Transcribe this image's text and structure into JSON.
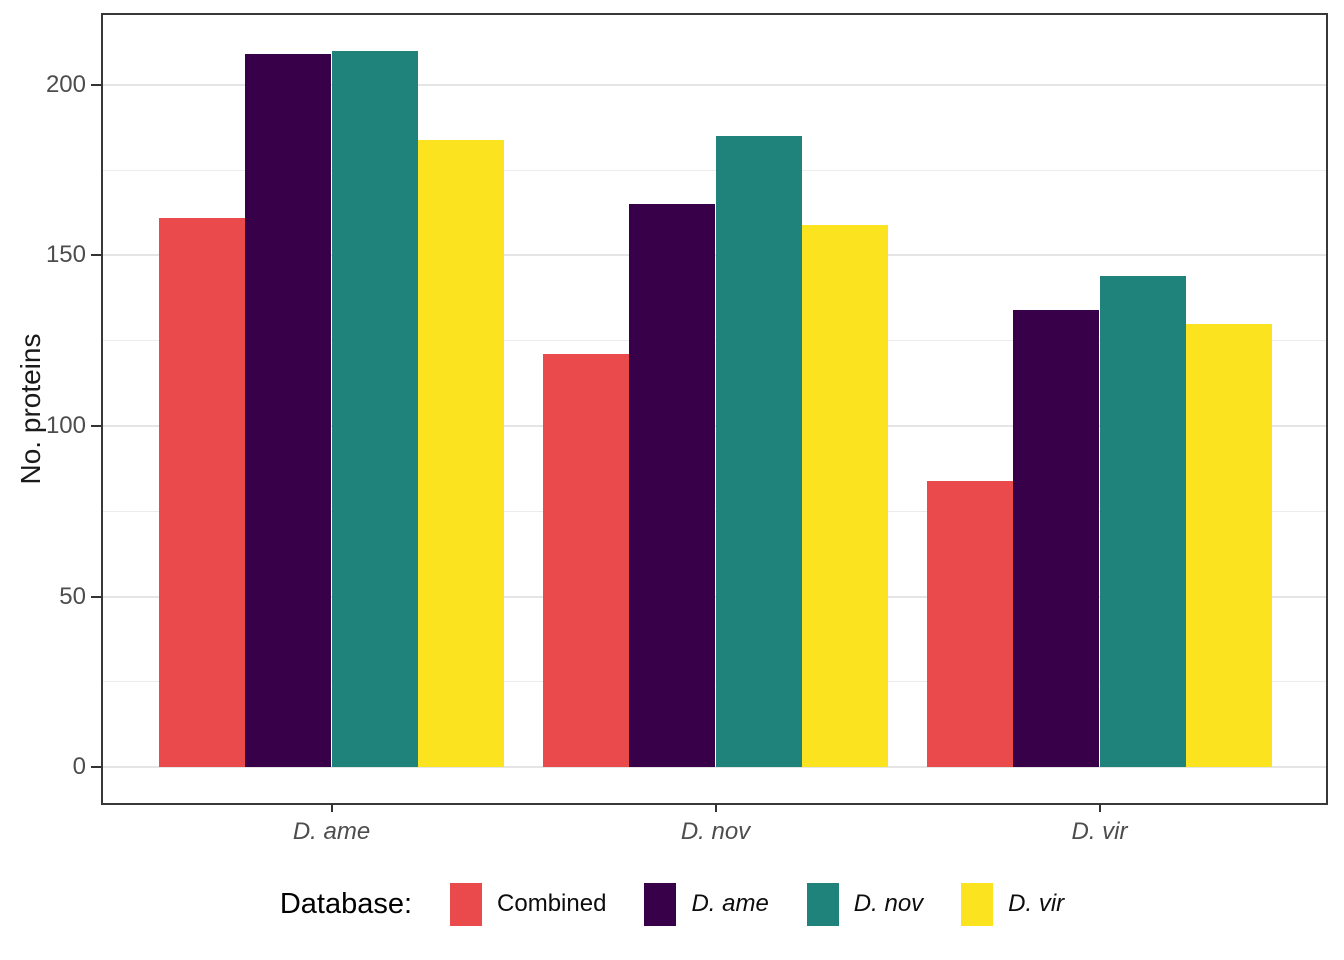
{
  "chart_data": {
    "type": "bar",
    "title": "",
    "ylabel": "No. proteins",
    "xlabel": "",
    "categories": [
      "D. ame",
      "D. nov",
      "D. vir"
    ],
    "categories_style": "italic",
    "series": [
      {
        "name": "Combined",
        "italic": false,
        "color": "#EA4A4B",
        "values": [
          161,
          121,
          84
        ]
      },
      {
        "name": "D. ame",
        "italic": true,
        "color": "#370049",
        "values": [
          209,
          165,
          134
        ]
      },
      {
        "name": "D. nov",
        "italic": true,
        "color": "#1F837C",
        "values": [
          210,
          185,
          144
        ]
      },
      {
        "name": "D. vir",
        "italic": true,
        "color": "#FBE31F",
        "values": [
          184,
          159,
          130
        ]
      }
    ],
    "ylim": [
      -10.5,
      220.5
    ],
    "yticks": [
      0,
      50,
      100,
      150,
      200
    ],
    "yticks_minor": [
      25,
      75,
      125,
      175
    ],
    "grid": "on",
    "legend": {
      "title": "Database:",
      "position": "bottom",
      "entries": [
        "Combined",
        "D. ame",
        "D. nov",
        "D. vir"
      ]
    }
  }
}
